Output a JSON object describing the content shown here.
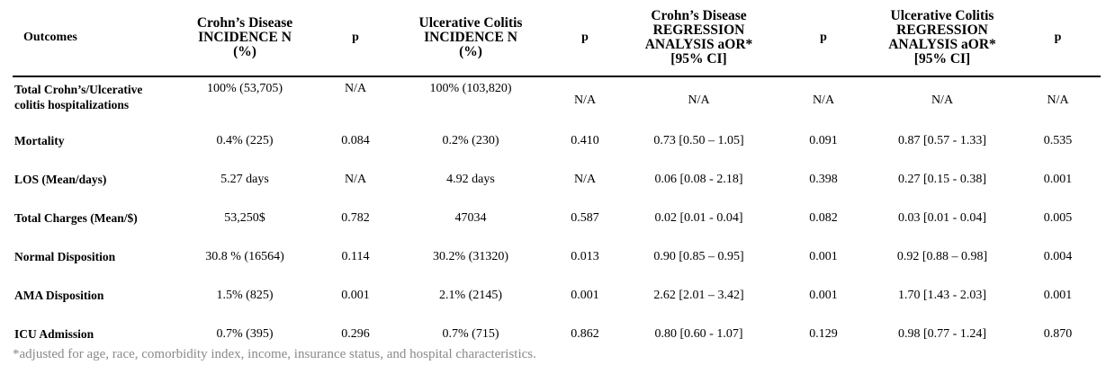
{
  "table": {
    "headers": [
      "Outcomes",
      "Crohn’s Disease INCIDENCE N (%)",
      "p",
      "Ulcerative Colitis INCIDENCE N (%)",
      "p",
      "Crohn’s Disease REGRESSION ANALYSIS aOR* [95% CI]",
      "p",
      "Ulcerative Colitis REGRESSION ANALYSIS aOR* [95% CI]",
      "p"
    ],
    "header_lines": {
      "outcomes": "Outcomes",
      "cd_inc_1": "Crohn’s Disease",
      "cd_inc_2": "INCIDENCE N",
      "cd_inc_3": "(%)",
      "p": "p",
      "uc_inc_1": "Ulcerative Colitis",
      "uc_inc_2": "INCIDENCE N",
      "uc_inc_3": "(%)",
      "cd_reg_1": "Crohn’s Disease",
      "cd_reg_2": "REGRESSION",
      "cd_reg_3": "ANALYSIS aOR*",
      "cd_reg_4": "[95% CI]",
      "uc_reg_1": "Ulcerative Colitis",
      "uc_reg_2": "REGRESSION",
      "uc_reg_3": "ANALYSIS aOR*",
      "uc_reg_4": "[95% CI]"
    },
    "rows": [
      {
        "label_1": "Total Crohn’s/Ulcerative",
        "label_2": "colitis hospitalizations",
        "cells": [
          "100% (53,705)",
          "N/A",
          "100% (103,820)",
          "N/A",
          "N/A",
          "N/A",
          "N/A",
          "N/A"
        ]
      },
      {
        "label_1": "Mortality",
        "cells": [
          "0.4% (225)",
          "0.084",
          "0.2% (230)",
          "0.410",
          "0.73 [0.50 – 1.05]",
          "0.091",
          "0.87 [0.57 - 1.33]",
          "0.535"
        ]
      },
      {
        "label_1": "LOS (Mean/days)",
        "cells": [
          "5.27 days",
          "N/A",
          "4.92 days",
          "N/A",
          "0.06 [0.08 - 2.18]",
          "0.398",
          "0.27 [0.15 - 0.38]",
          "0.001"
        ]
      },
      {
        "label_1": "Total Charges (Mean/$)",
        "cells": [
          "53,250$",
          "0.782",
          "47034",
          "0.587",
          "0.02 [0.01 - 0.04]",
          "0.082",
          "0.03 [0.01 - 0.04]",
          "0.005"
        ]
      },
      {
        "label_1": "Normal Disposition",
        "cells": [
          "30.8 % (16564)",
          "0.114",
          "30.2% (31320)",
          "0.013",
          "0.90 [0.85 – 0.95]",
          "0.001",
          "0.92 [0.88 – 0.98]",
          "0.004"
        ]
      },
      {
        "label_1": "AMA Disposition",
        "cells": [
          "1.5% (825)",
          "0.001",
          "2.1% (2145)",
          "0.001",
          "2.62 [2.01 – 3.42]",
          "0.001",
          "1.70 [1.43 - 2.03]",
          "0.001"
        ]
      },
      {
        "label_1": "ICU Admission",
        "cells": [
          "0.7% (395)",
          "0.296",
          "0.7% (715)",
          "0.862",
          "0.80 [0.60 - 1.07]",
          "0.129",
          "0.98 [0.77 - 1.24]",
          "0.870"
        ]
      }
    ]
  },
  "footnote": "*adjusted for age, race, comorbidity index, income, insurance status, and hospital characteristics."
}
